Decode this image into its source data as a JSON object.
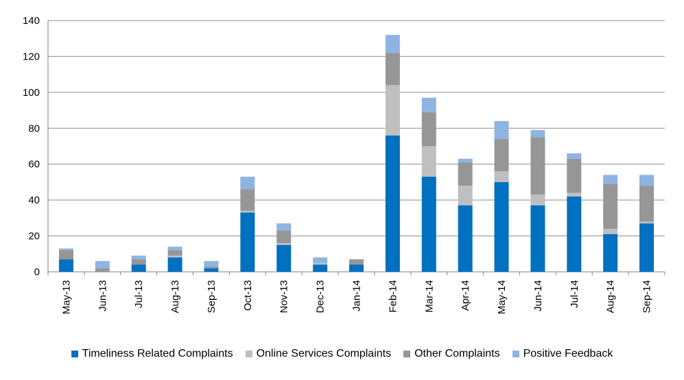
{
  "chart_data": {
    "type": "bar",
    "stacked": true,
    "categories": [
      "May-13",
      "Jun-13",
      "Jul-13",
      "Aug-13",
      "Sep-13",
      "Oct-13",
      "Nov-13",
      "Dec-13",
      "Jan-14",
      "Feb-14",
      "Mar-14",
      "Apr-14",
      "May-14",
      "Jun-14",
      "Jul-14",
      "Aug-14",
      "Sep-14"
    ],
    "series": [
      {
        "name": "Timeliness Related Complaints",
        "color": "#0070C0",
        "values": [
          7,
          0,
          4,
          8,
          2,
          33,
          15,
          4,
          4,
          76,
          53,
          37,
          50,
          37,
          42,
          21,
          27
        ]
      },
      {
        "name": "Online Services Complaints",
        "color": "#BFBFBF",
        "values": [
          0,
          0,
          0,
          1,
          0,
          1,
          1,
          1,
          0,
          28,
          17,
          11,
          6,
          6,
          2,
          3,
          1
        ]
      },
      {
        "name": "Other Complaints",
        "color": "#969696",
        "values": [
          5,
          2,
          3,
          3,
          1,
          12,
          7,
          0,
          3,
          18,
          19,
          13,
          18,
          32,
          19,
          25,
          20
        ]
      },
      {
        "name": "Positive Feedback",
        "color": "#8EB4E3",
        "values": [
          1,
          4,
          2,
          2,
          3,
          7,
          4,
          3,
          0,
          10,
          8,
          2,
          10,
          4,
          3,
          5,
          6
        ]
      }
    ],
    "xlabel": "",
    "ylabel": "",
    "ylim": [
      0,
      140
    ],
    "yticks": [
      0,
      20,
      40,
      60,
      80,
      100,
      120,
      140
    ],
    "grid": true,
    "legend_position": "bottom"
  }
}
